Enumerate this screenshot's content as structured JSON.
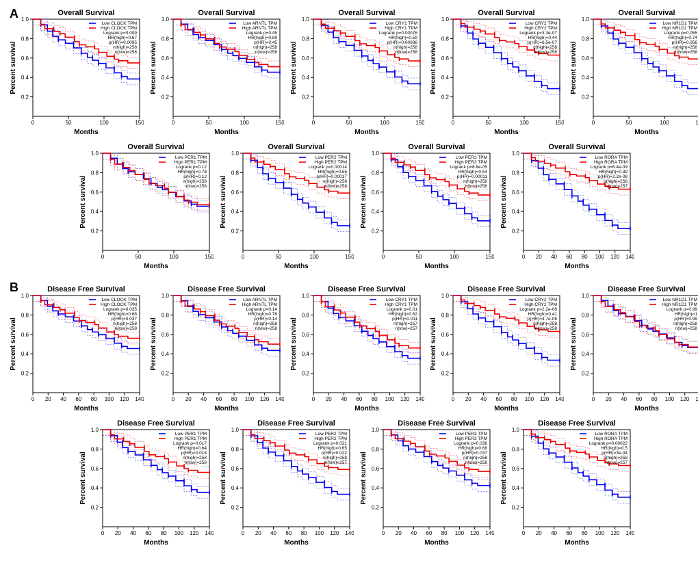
{
  "colors": {
    "low": "#0000ee",
    "high": "#ee0000",
    "axis": "#000000",
    "bg": "#ffffff"
  },
  "axes": {
    "xlabel": "Months",
    "ylabel": "Percent survival",
    "yticks": [
      0.2,
      0.4,
      0.6,
      0.8,
      1.0
    ],
    "xticks_150": [
      0,
      50,
      100,
      150
    ],
    "xticks_140": [
      0,
      20,
      40,
      60,
      80,
      100,
      120,
      140
    ]
  },
  "section_labels": {
    "A": "A",
    "B": "B"
  },
  "panels": {
    "os": [
      {
        "gene": "CLOCK",
        "title": "Overall Survival",
        "xmax": 150,
        "stats": [
          "Low CLOCK TPM",
          "High CLOCK TPM",
          "Logrank p=0.009",
          "HR(high)=0.67",
          "p(HR)=0.0095",
          "n(high)=258",
          "n(low)=258"
        ],
        "lowEnd": 0.38,
        "highEnd": 0.54
      },
      {
        "gene": "ARNTL",
        "title": "Overall Survival",
        "xmax": 150,
        "stats": [
          "Low ARNTL TPM",
          "High ARNTL TPM",
          "Logrank p=0.45",
          "HR(high)=0.89",
          "p(HR)=0.45",
          "n(high)=258",
          "n(low)=258"
        ],
        "lowEnd": 0.45,
        "highEnd": 0.5
      },
      {
        "gene": "CRY1",
        "title": "Overall Survival",
        "xmax": 150,
        "stats": [
          "Low CRY1 TPM",
          "High CRY1 TPM",
          "Logrank p=0.00076",
          "HR(high)=0.59",
          "p(HR)=0.00088",
          "n(high)=258",
          "n(low)=258"
        ],
        "lowEnd": 0.33,
        "highEnd": 0.56
      },
      {
        "gene": "CRY2",
        "title": "Overall Survival",
        "xmax": 150,
        "stats": [
          "Low CRY2 TPM",
          "High CRY2 TPM",
          "Logrank p=3.3e-07",
          "HR(high)=0.44",
          "p(HR)=6.5e-07",
          "n(high)=258",
          "n(low)=258"
        ],
        "lowEnd": 0.28,
        "highEnd": 0.62
      },
      {
        "gene": "NR1D1",
        "title": "Overall Survival",
        "xmax": 150,
        "stats": [
          "Low NR1D1 TPM",
          "High NR1D1 TPM",
          "Logrank p=0.055",
          "HR(high)=0.74",
          "p(HR)=0.056",
          "n(high)=258",
          "n(low)=258"
        ],
        "lowEnd": 0.28,
        "highEnd": 0.58
      },
      {
        "gene": "PER1",
        "title": "Overall Survival",
        "xmax": 150,
        "stats": [
          "Low PER1 TPM",
          "High PER1 TPM",
          "Logrank p=0.12",
          "HR(high)=0.78",
          "p(HR)=0.12",
          "n(high)=258",
          "n(low)=258"
        ],
        "lowEnd": 0.45,
        "highEnd": 0.46
      },
      {
        "gene": "PER2",
        "title": "Overall Survival",
        "xmax": 150,
        "stats": [
          "Low PER2 TPM",
          "High PER2 TPM",
          "Logrank p=0.00014",
          "HR(high)=0.55",
          "p(HR)=0.00017",
          "n(high)=258",
          "n(low)=258"
        ],
        "lowEnd": 0.25,
        "highEnd": 0.58
      },
      {
        "gene": "PER3",
        "title": "Overall Survival",
        "xmax": 150,
        "stats": [
          "Low PER3 TPM",
          "High PER3 TPM",
          "Logrank p=8.8e-05",
          "HR(high)=0.54",
          "p(HR)=0.00011",
          "n(high)=258",
          "n(low)=258"
        ],
        "lowEnd": 0.3,
        "highEnd": 0.56
      },
      {
        "gene": "RORA",
        "title": "Overall Survival",
        "xmax": 140,
        "stats": [
          "Low RORA TPM",
          "High RORA TPM",
          "Logrank p=6.4e-09",
          "HR(high)=0.39",
          "p(HR)=2.2e-08",
          "n(high)=258",
          "n(low)=257"
        ],
        "lowEnd": 0.22,
        "highEnd": 0.62
      }
    ],
    "dfs": [
      {
        "gene": "CLOCK",
        "title": "Disease Free Survival",
        "xmax": 140,
        "stats": [
          "Low CLOCK TPM",
          "High CLOCK TPM",
          "Logrank p=0.035",
          "HR(high)=0.68",
          "p(HR)=0.037",
          "n(high)=258",
          "n(low)=258"
        ],
        "lowEnd": 0.45,
        "highEnd": 0.55
      },
      {
        "gene": "ARNTL",
        "title": "Disease Free Survival",
        "xmax": 140,
        "stats": [
          "Low ARNTL TPM",
          "High ARNTL TPM",
          "Logrank p=0.14",
          "HR(high)=0.76",
          "p(HR)=0.14",
          "n(high)=258",
          "n(low)=258"
        ],
        "lowEnd": 0.43,
        "highEnd": 0.49
      },
      {
        "gene": "CRY1",
        "title": "Disease Free Survival",
        "xmax": 140,
        "stats": [
          "Low CRY1 TPM",
          "High CRY1 TPM",
          "Logrank p=0.01",
          "HR(high)=0.62",
          "p(HR)=0.011",
          "n(high)=257",
          "n(low)=257"
        ],
        "lowEnd": 0.35,
        "highEnd": 0.45
      },
      {
        "gene": "CRY2",
        "title": "Disease Free Survival",
        "xmax": 140,
        "stats": [
          "Low CRY2 TPM",
          "High CRY2 TPM",
          "Logrank p=2.2e-06",
          "HR(high)=0.41",
          "p(HR)=4.7e-06",
          "n(high)=258",
          "n(low)=258"
        ],
        "lowEnd": 0.33,
        "highEnd": 0.62
      },
      {
        "gene": "NR1D1",
        "title": "Disease Free Survival",
        "xmax": 140,
        "stats": [
          "Low NR1D1 TPM",
          "High NR1D1 TPM",
          "Logrank p=0.99",
          "HR(high)=1",
          "p(HR)=0.99",
          "n(high)=258",
          "n(low)=258"
        ],
        "lowEnd": 0.46,
        "highEnd": 0.46
      },
      {
        "gene": "PER1",
        "title": "Disease Free Survival",
        "xmax": 140,
        "stats": [
          "Low PER1 TPM",
          "High PER1 TPM",
          "Logrank p=0.017",
          "HR(high)=0.64",
          "p(HR)=0.018",
          "n(high)=258",
          "n(low)=258"
        ],
        "lowEnd": 0.35,
        "highEnd": 0.55
      },
      {
        "gene": "PER2",
        "title": "Disease Free Survival",
        "xmax": 140,
        "stats": [
          "Low PER2 TPM",
          "High PER2 TPM",
          "Logrank p=0.021",
          "HR(high)=0.65",
          "p(HR)=0.022",
          "n(high)=258",
          "n(low)=257"
        ],
        "lowEnd": 0.33,
        "highEnd": 0.58
      },
      {
        "gene": "PER3",
        "title": "Disease Free Survival",
        "xmax": 140,
        "stats": [
          "Low PER3 TPM",
          "High PER3 TPM",
          "Logrank p=0.036",
          "HR(high)=0.68",
          "p(HR)=0.037",
          "n(high)=258",
          "n(low)=258"
        ],
        "lowEnd": 0.42,
        "highEnd": 0.56
      },
      {
        "gene": "RORA",
        "title": "Disease Free Survival",
        "xmax": 140,
        "stats": [
          "Low RORA TPM",
          "High RORA TPM",
          "Logrank p=0.00022",
          "HR(high)=0.5",
          "p(HR)=3e-04",
          "n(high)=258",
          "n(low)=257"
        ],
        "lowEnd": 0.3,
        "highEnd": 0.62
      }
    ]
  }
}
